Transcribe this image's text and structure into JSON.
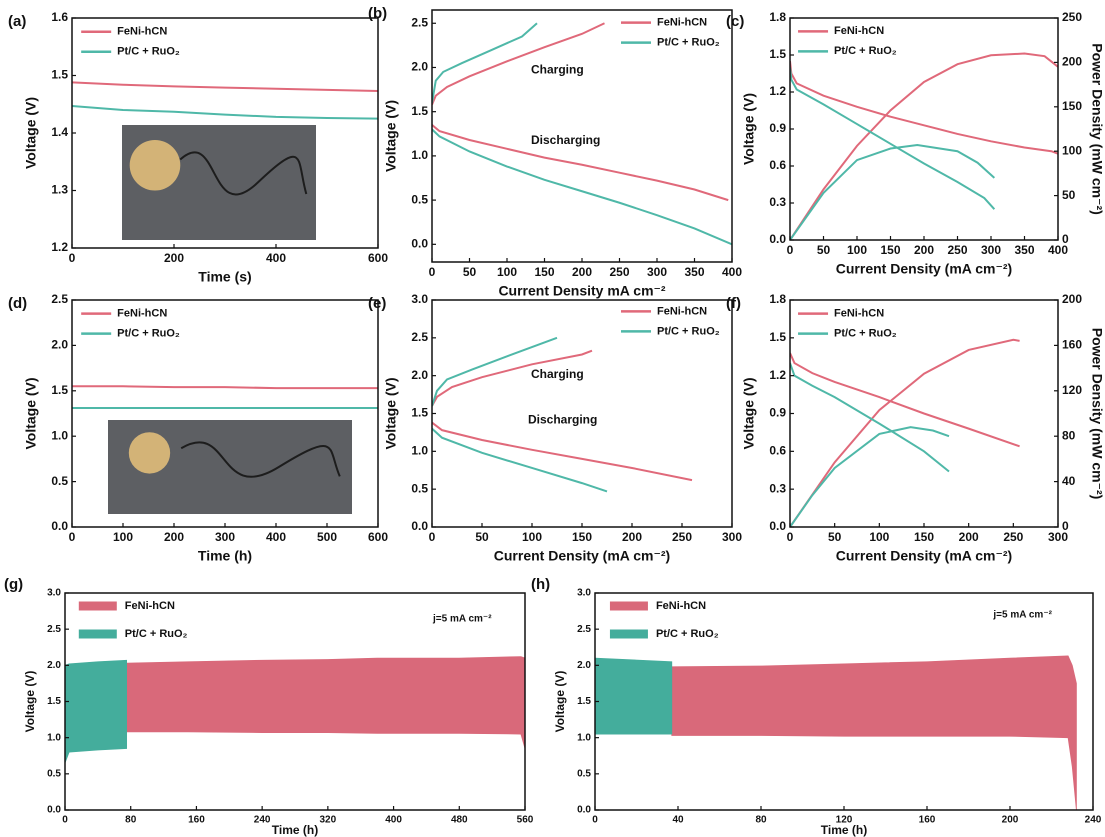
{
  "chart_data": [
    {
      "type": "line",
      "panel_label": "(a)",
      "xlabel": "Time (s)",
      "ylabel": "Voltage (V)",
      "xlim": [
        0,
        600
      ],
      "xticks": [
        0,
        200,
        400,
        600
      ],
      "ylim": [
        1.2,
        1.6
      ],
      "yticks": [
        1.2,
        1.3,
        1.4,
        1.5,
        1.6
      ],
      "legend": "upper left",
      "x": [
        0,
        100,
        200,
        300,
        400,
        500,
        600
      ],
      "series": [
        {
          "name": "FeNi-hCN",
          "color": "#e0697a",
          "values": [
            1.488,
            1.484,
            1.481,
            1.479,
            1.477,
            1.475,
            1.473
          ]
        },
        {
          "name": "Pt/C + RuO₂",
          "color": "#4fb8a8",
          "values": [
            1.447,
            1.44,
            1.437,
            1.432,
            1.428,
            1.426,
            1.425
          ]
        }
      ]
    },
    {
      "type": "line",
      "panel_label": "(b)",
      "xlabel": "Current Density mA cm⁻²",
      "ylabel": "Voltage (V)",
      "xlim": [
        0,
        400
      ],
      "xticks": [
        0,
        50,
        100,
        150,
        200,
        250,
        300,
        350,
        400
      ],
      "ylim": [
        -0.2,
        2.65
      ],
      "yticks": [
        {
          "value": 0,
          "label": "0.0"
        },
        0.5,
        {
          "value": 1,
          "label": "1.0"
        },
        1.5,
        {
          "value": 2,
          "label": "2.0"
        },
        2.5
      ],
      "legend": "upper right",
      "annotations": [
        "Charging",
        "Discharging"
      ],
      "series": [
        {
          "name": "FeNi-hCN",
          "color": "#e0697a",
          "curves": [
            {
              "x": [
                0,
                5,
                20,
                50,
                100,
                150,
                200,
                230
              ],
              "values": [
                1.58,
                1.68,
                1.78,
                1.9,
                2.07,
                2.23,
                2.38,
                2.5
              ]
            },
            {
              "x": [
                0,
                10,
                50,
                100,
                150,
                200,
                250,
                300,
                350,
                395
              ],
              "values": [
                1.35,
                1.28,
                1.18,
                1.08,
                0.98,
                0.9,
                0.81,
                0.72,
                0.62,
                0.5
              ]
            }
          ]
        },
        {
          "name": "Pt/C + RuO₂",
          "color": "#4fb8a8",
          "curves": [
            {
              "x": [
                0,
                5,
                15,
                40,
                80,
                120,
                140
              ],
              "values": [
                1.6,
                1.85,
                1.95,
                2.05,
                2.2,
                2.35,
                2.5
              ]
            },
            {
              "x": [
                0,
                10,
                50,
                100,
                150,
                200,
                250,
                300,
                350,
                400
              ],
              "values": [
                1.3,
                1.22,
                1.05,
                0.88,
                0.73,
                0.6,
                0.47,
                0.33,
                0.18,
                0
              ]
            }
          ]
        }
      ]
    },
    {
      "type": "line",
      "panel_label": "(c)",
      "xlabel": "Current Density (mA cm⁻²)",
      "ylabel": "Voltage (V)",
      "y2label": "Power Density (mW cm⁻²)",
      "xlim": [
        0,
        400
      ],
      "xticks": [
        0,
        50,
        100,
        150,
        200,
        250,
        300,
        350,
        400
      ],
      "ylim": [
        0,
        1.8
      ],
      "yticks": [
        {
          "value": 0,
          "label": "0.0"
        },
        0.3,
        0.6,
        0.9,
        1.2,
        1.5,
        1.8
      ],
      "y2lim": [
        0,
        250
      ],
      "y2ticks": [
        0,
        50,
        100,
        150,
        200,
        250
      ],
      "legend": "upper left",
      "series": [
        {
          "name": "FeNi-hCN",
          "color": "#e0697a",
          "curves": [
            {
              "x": [
                0,
                2,
                10,
                50,
                100,
                150,
                200,
                250,
                300,
                350,
                390,
                400
              ],
              "values": [
                1.45,
                1.35,
                1.27,
                1.17,
                1.08,
                1.0,
                0.93,
                0.86,
                0.8,
                0.75,
                0.72,
                0.7
              ]
            },
            {
              "axis": "y2",
              "x": [
                0,
                50,
                100,
                150,
                200,
                250,
                300,
                350,
                380,
                400
              ],
              "values": [
                0,
                57,
                106,
                146,
                178,
                198,
                208,
                210,
                207,
                195
              ]
            }
          ]
        },
        {
          "name": "Pt/C + RuO₂",
          "color": "#4fb8a8",
          "curves": [
            {
              "x": [
                0,
                2,
                10,
                50,
                100,
                150,
                200,
                250,
                290,
                305
              ],
              "values": [
                1.4,
                1.3,
                1.22,
                1.1,
                0.94,
                0.78,
                0.62,
                0.47,
                0.34,
                0.25
              ]
            },
            {
              "axis": "y2",
              "x": [
                0,
                50,
                100,
                150,
                190,
                250,
                280,
                305
              ],
              "values": [
                0,
                53,
                90,
                103,
                107,
                100,
                87,
                70
              ]
            }
          ]
        }
      ]
    },
    {
      "type": "line",
      "panel_label": "(d)",
      "xlabel": "Time (h)",
      "ylabel": "Voltage (V)",
      "xlim": [
        0,
        600
      ],
      "xticks": [
        0,
        100,
        200,
        300,
        400,
        500,
        600
      ],
      "ylim": [
        0,
        2.5
      ],
      "yticks": [
        {
          "value": 0,
          "label": "0.0"
        },
        0.5,
        {
          "value": 1,
          "label": "1.0"
        },
        1.5,
        {
          "value": 2,
          "label": "2.0"
        },
        2.5
      ],
      "legend": "upper left",
      "x": [
        0,
        100,
        200,
        300,
        400,
        500,
        600
      ],
      "series": [
        {
          "name": "FeNi-hCN",
          "color": "#e0697a",
          "values": [
            1.55,
            1.55,
            1.54,
            1.54,
            1.53,
            1.53,
            1.53
          ]
        },
        {
          "name": "Pt/C + RuO₂",
          "color": "#4fb8a8",
          "values": [
            1.31,
            1.31,
            1.31,
            1.31,
            1.31,
            1.31,
            1.31
          ]
        }
      ]
    },
    {
      "type": "line",
      "panel_label": "(e)",
      "xlabel": "Current Density (mA cm⁻²)",
      "ylabel": "Voltage (V)",
      "xlim": [
        0,
        300
      ],
      "xticks": [
        0,
        50,
        100,
        150,
        200,
        250,
        300
      ],
      "ylim": [
        0,
        3
      ],
      "yticks": [
        {
          "value": 0,
          "label": "0.0"
        },
        0.5,
        {
          "value": 1,
          "label": "1.0"
        },
        1.5,
        {
          "value": 2,
          "label": "2.0"
        },
        2.5,
        {
          "value": 3,
          "label": "3.0"
        }
      ],
      "legend": "upper right",
      "annotations": [
        "Charging",
        "Discharging"
      ],
      "series": [
        {
          "name": "FeNi-hCN",
          "color": "#e0697a",
          "curves": [
            {
              "x": [
                0,
                5,
                20,
                50,
                100,
                150,
                160
              ],
              "values": [
                1.6,
                1.72,
                1.85,
                1.98,
                2.15,
                2.28,
                2.33
              ]
            },
            {
              "x": [
                0,
                10,
                50,
                100,
                150,
                200,
                260
              ],
              "values": [
                1.38,
                1.28,
                1.15,
                1.02,
                0.9,
                0.78,
                0.62
              ]
            }
          ]
        },
        {
          "name": "Pt/C + RuO₂",
          "color": "#4fb8a8",
          "curves": [
            {
              "x": [
                0,
                5,
                15,
                40,
                80,
                125
              ],
              "values": [
                1.6,
                1.8,
                1.95,
                2.08,
                2.28,
                2.5
              ]
            },
            {
              "x": [
                0,
                10,
                50,
                100,
                150,
                175
              ],
              "values": [
                1.3,
                1.18,
                0.98,
                0.78,
                0.58,
                0.47
              ]
            }
          ]
        }
      ]
    },
    {
      "type": "line",
      "panel_label": "(f)",
      "xlabel": "Current Density (mA cm⁻²)",
      "ylabel": "Voltage (V)",
      "y2label": "Power Density (mW cm⁻²)",
      "xlim": [
        0,
        300
      ],
      "xticks": [
        0,
        50,
        100,
        150,
        200,
        250,
        300
      ],
      "ylim": [
        0,
        1.8
      ],
      "yticks": [
        {
          "value": 0,
          "label": "0.0"
        },
        0.3,
        0.6,
        0.9,
        1.2,
        1.5,
        1.8
      ],
      "y2lim": [
        0,
        200
      ],
      "y2ticks": [
        0,
        40,
        80,
        120,
        160,
        200
      ],
      "legend": "upper left",
      "series": [
        {
          "name": "FeNi-hCN",
          "color": "#e0697a",
          "curves": [
            {
              "x": [
                0,
                5,
                25,
                50,
                100,
                150,
                200,
                257
              ],
              "values": [
                1.38,
                1.3,
                1.22,
                1.15,
                1.03,
                0.9,
                0.78,
                0.64
              ]
            },
            {
              "axis": "y2",
              "x": [
                0,
                50,
                100,
                150,
                200,
                250,
                257
              ],
              "values": [
                0,
                57,
                103,
                135,
                156,
                165,
                164
              ]
            }
          ]
        },
        {
          "name": "Pt/C + RuO₂",
          "color": "#4fb8a8",
          "curves": [
            {
              "x": [
                0,
                5,
                25,
                50,
                100,
                150,
                178
              ],
              "values": [
                1.3,
                1.2,
                1.12,
                1.03,
                0.82,
                0.6,
                0.44
              ]
            },
            {
              "axis": "y2",
              "x": [
                0,
                25,
                50,
                100,
                135,
                160,
                178
              ],
              "values": [
                0,
                28,
                52,
                82,
                88,
                85,
                80
              ]
            }
          ]
        }
      ]
    },
    {
      "type": "area",
      "panel_label": "(g)",
      "xlabel": "Time (h)",
      "ylabel": "Voltage (V)",
      "xlim": [
        0,
        560
      ],
      "xticks": [
        0,
        80,
        160,
        240,
        320,
        400,
        480,
        560
      ],
      "ylim": [
        0,
        3
      ],
      "yticks": [
        {
          "value": 0,
          "label": "0.0"
        },
        0.5,
        {
          "value": 1,
          "label": "1.0"
        },
        1.5,
        {
          "value": 2,
          "label": "2.0"
        },
        2.5,
        {
          "value": 3,
          "label": "3.0"
        }
      ],
      "legend": "upper left",
      "annotations": [
        "j=5 mA cm⁻²"
      ],
      "series": [
        {
          "name": "FeNi-hCN",
          "color": "#d9697a",
          "x": [
            75,
            150,
            240,
            320,
            380,
            480,
            555,
            560
          ],
          "upper": [
            2.03,
            2.05,
            2.07,
            2.08,
            2.1,
            2.1,
            2.12,
            2.1
          ],
          "lower": [
            1.08,
            1.08,
            1.07,
            1.07,
            1.06,
            1.06,
            1.05,
            0.85
          ]
        },
        {
          "name": "Pt/C + RuO₂",
          "color": "#44ad9c",
          "x": [
            0,
            5,
            40,
            75
          ],
          "upper": [
            2.0,
            2.02,
            2.05,
            2.07
          ],
          "lower": [
            0.65,
            0.8,
            0.83,
            0.85
          ]
        }
      ]
    },
    {
      "type": "area",
      "panel_label": "(h)",
      "xlabel": "Time (h)",
      "ylabel": "Voltage (V)",
      "xlim": [
        0,
        240
      ],
      "xticks": [
        0,
        40,
        80,
        120,
        160,
        200,
        240
      ],
      "ylim": [
        0,
        3
      ],
      "yticks": [
        {
          "value": 0,
          "label": "0.0"
        },
        0.5,
        {
          "value": 1,
          "label": "1.0"
        },
        1.5,
        {
          "value": 2,
          "label": "2.0"
        },
        2.5,
        {
          "value": 3,
          "label": "3.0"
        }
      ],
      "legend": "upper left",
      "annotations": [
        "j=5 mA cm⁻²"
      ],
      "series": [
        {
          "name": "FeNi-hCN",
          "color": "#d9697a",
          "x": [
            37,
            80,
            120,
            160,
            200,
            228,
            230,
            232
          ],
          "upper": [
            1.98,
            1.99,
            2.02,
            2.05,
            2.1,
            2.13,
            2.0,
            1.75
          ],
          "lower": [
            1.03,
            1.03,
            1.02,
            1.02,
            1.02,
            1.0,
            0.6,
            0
          ]
        },
        {
          "name": "Pt/C + RuO₂",
          "color": "#44ad9c",
          "x": [
            0,
            37
          ],
          "upper": [
            2.1,
            2.05
          ],
          "lower": [
            1.05,
            1.05
          ]
        }
      ]
    }
  ]
}
